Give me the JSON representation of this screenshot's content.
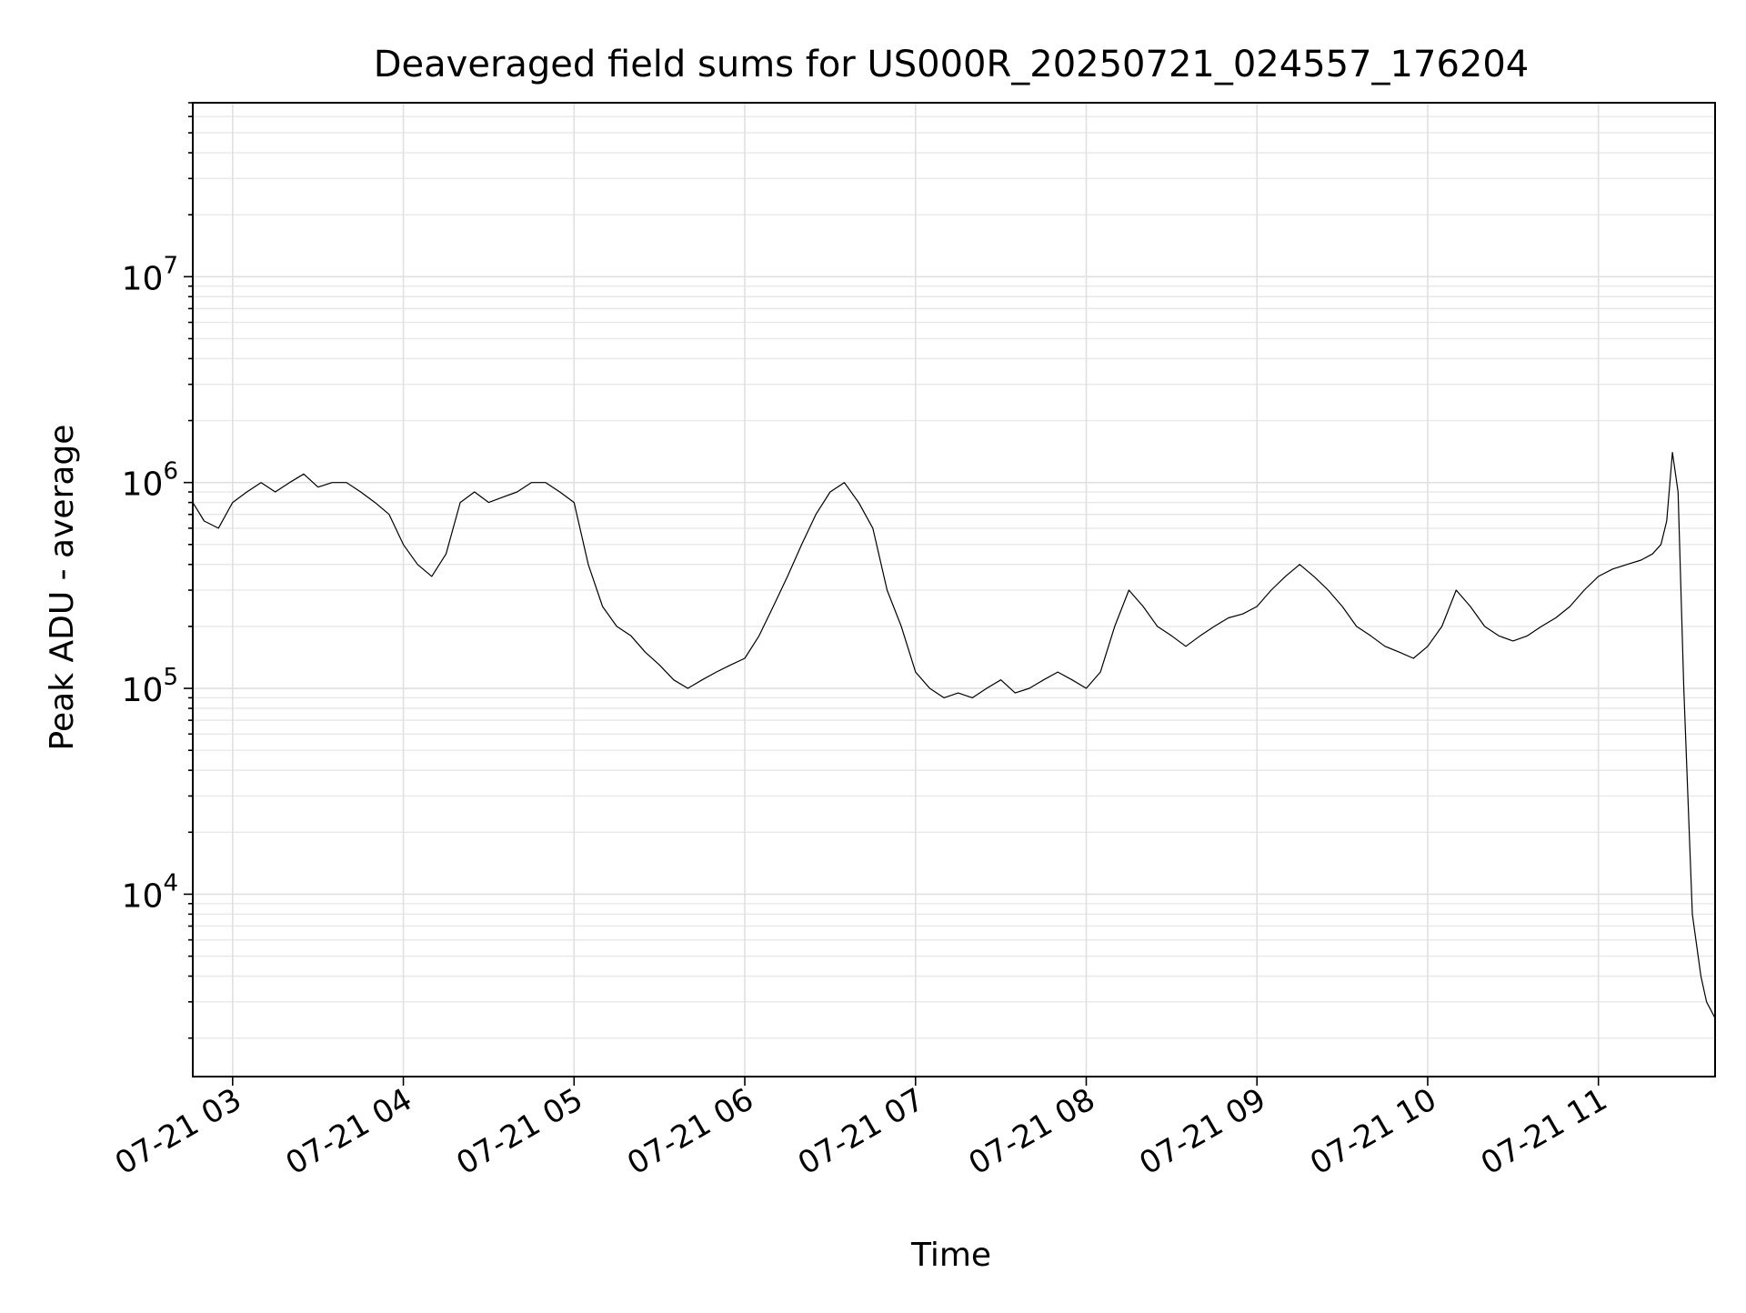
{
  "chart_data": {
    "type": "line",
    "title": "Deaveraged field sums for US000R_20250721_024557_176204",
    "xlabel": "Time",
    "ylabel": "Peak ADU - average",
    "yscale": "log",
    "grid": true,
    "xlim": [
      "2025-07-21 02:46",
      "2025-07-21 11:41"
    ],
    "ylim": [
      1300,
      70000000
    ],
    "xticks": [
      {
        "value": "2025-07-21 03:00",
        "label": "07-21 03"
      },
      {
        "value": "2025-07-21 04:00",
        "label": "07-21 04"
      },
      {
        "value": "2025-07-21 05:00",
        "label": "07-21 05"
      },
      {
        "value": "2025-07-21 06:00",
        "label": "07-21 06"
      },
      {
        "value": "2025-07-21 07:00",
        "label": "07-21 07"
      },
      {
        "value": "2025-07-21 08:00",
        "label": "07-21 08"
      },
      {
        "value": "2025-07-21 09:00",
        "label": "07-21 09"
      },
      {
        "value": "2025-07-21 10:00",
        "label": "07-21 10"
      },
      {
        "value": "2025-07-21 11:00",
        "label": "07-21 11"
      }
    ],
    "yticks": [
      {
        "value": 10000,
        "base": "10",
        "exp": "4"
      },
      {
        "value": 100000,
        "base": "10",
        "exp": "5"
      },
      {
        "value": 1000000,
        "base": "10",
        "exp": "6"
      },
      {
        "value": 10000000,
        "base": "10",
        "exp": "7"
      }
    ],
    "series": [
      {
        "color": "#000000",
        "x": [
          "2025-07-21 02:46",
          "2025-07-21 02:50",
          "2025-07-21 02:55",
          "2025-07-21 03:00",
          "2025-07-21 03:05",
          "2025-07-21 03:10",
          "2025-07-21 03:15",
          "2025-07-21 03:20",
          "2025-07-21 03:25",
          "2025-07-21 03:30",
          "2025-07-21 03:35",
          "2025-07-21 03:40",
          "2025-07-21 03:45",
          "2025-07-21 03:50",
          "2025-07-21 03:55",
          "2025-07-21 04:00",
          "2025-07-21 04:05",
          "2025-07-21 04:10",
          "2025-07-21 04:15",
          "2025-07-21 04:20",
          "2025-07-21 04:25",
          "2025-07-21 04:30",
          "2025-07-21 04:35",
          "2025-07-21 04:40",
          "2025-07-21 04:45",
          "2025-07-21 04:50",
          "2025-07-21 04:55",
          "2025-07-21 05:00",
          "2025-07-21 05:05",
          "2025-07-21 05:10",
          "2025-07-21 05:15",
          "2025-07-21 05:20",
          "2025-07-21 05:25",
          "2025-07-21 05:30",
          "2025-07-21 05:35",
          "2025-07-21 05:40",
          "2025-07-21 05:45",
          "2025-07-21 05:50",
          "2025-07-21 05:55",
          "2025-07-21 06:00",
          "2025-07-21 06:05",
          "2025-07-21 06:10",
          "2025-07-21 06:15",
          "2025-07-21 06:20",
          "2025-07-21 06:25",
          "2025-07-21 06:30",
          "2025-07-21 06:35",
          "2025-07-21 06:40",
          "2025-07-21 06:45",
          "2025-07-21 06:50",
          "2025-07-21 06:55",
          "2025-07-21 07:00",
          "2025-07-21 07:05",
          "2025-07-21 07:10",
          "2025-07-21 07:15",
          "2025-07-21 07:20",
          "2025-07-21 07:25",
          "2025-07-21 07:30",
          "2025-07-21 07:35",
          "2025-07-21 07:40",
          "2025-07-21 07:45",
          "2025-07-21 07:50",
          "2025-07-21 07:55",
          "2025-07-21 08:00",
          "2025-07-21 08:05",
          "2025-07-21 08:10",
          "2025-07-21 08:15",
          "2025-07-21 08:20",
          "2025-07-21 08:25",
          "2025-07-21 08:30",
          "2025-07-21 08:35",
          "2025-07-21 08:40",
          "2025-07-21 08:45",
          "2025-07-21 08:50",
          "2025-07-21 08:55",
          "2025-07-21 09:00",
          "2025-07-21 09:05",
          "2025-07-21 09:10",
          "2025-07-21 09:15",
          "2025-07-21 09:20",
          "2025-07-21 09:25",
          "2025-07-21 09:30",
          "2025-07-21 09:35",
          "2025-07-21 09:40",
          "2025-07-21 09:45",
          "2025-07-21 09:50",
          "2025-07-21 09:55",
          "2025-07-21 10:00",
          "2025-07-21 10:05",
          "2025-07-21 10:10",
          "2025-07-21 10:15",
          "2025-07-21 10:20",
          "2025-07-21 10:25",
          "2025-07-21 10:30",
          "2025-07-21 10:35",
          "2025-07-21 10:40",
          "2025-07-21 10:45",
          "2025-07-21 10:50",
          "2025-07-21 10:55",
          "2025-07-21 11:00",
          "2025-07-21 11:05",
          "2025-07-21 11:10",
          "2025-07-21 11:15",
          "2025-07-21 11:19",
          "2025-07-21 11:22",
          "2025-07-21 11:24",
          "2025-07-21 11:26",
          "2025-07-21 11:28",
          "2025-07-21 11:30",
          "2025-07-21 11:33",
          "2025-07-21 11:36",
          "2025-07-21 11:38",
          "2025-07-21 11:41"
        ],
        "y": [
          800000,
          650000,
          600000,
          800000,
          900000,
          1000000,
          900000,
          1000000,
          1100000,
          950000,
          1000000,
          1000000,
          900000,
          800000,
          700000,
          500000,
          400000,
          350000,
          450000,
          800000,
          900000,
          800000,
          850000,
          900000,
          1000000,
          1000000,
          900000,
          800000,
          400000,
          250000,
          200000,
          180000,
          150000,
          130000,
          110000,
          100000,
          110000,
          120000,
          130000,
          140000,
          180000,
          250000,
          350000,
          500000,
          700000,
          900000,
          1000000,
          800000,
          600000,
          300000,
          200000,
          120000,
          100000,
          90000,
          95000,
          90000,
          100000,
          110000,
          95000,
          100000,
          110000,
          120000,
          110000,
          100000,
          120000,
          200000,
          300000,
          250000,
          200000,
          180000,
          160000,
          180000,
          200000,
          220000,
          230000,
          250000,
          300000,
          350000,
          400000,
          350000,
          300000,
          250000,
          200000,
          180000,
          160000,
          150000,
          140000,
          160000,
          200000,
          300000,
          250000,
          200000,
          180000,
          170000,
          180000,
          200000,
          220000,
          250000,
          300000,
          350000,
          380000,
          400000,
          420000,
          450000,
          500000,
          650000,
          1400000,
          900000,
          100000,
          8000,
          4000,
          3000,
          2500
        ]
      }
    ]
  }
}
